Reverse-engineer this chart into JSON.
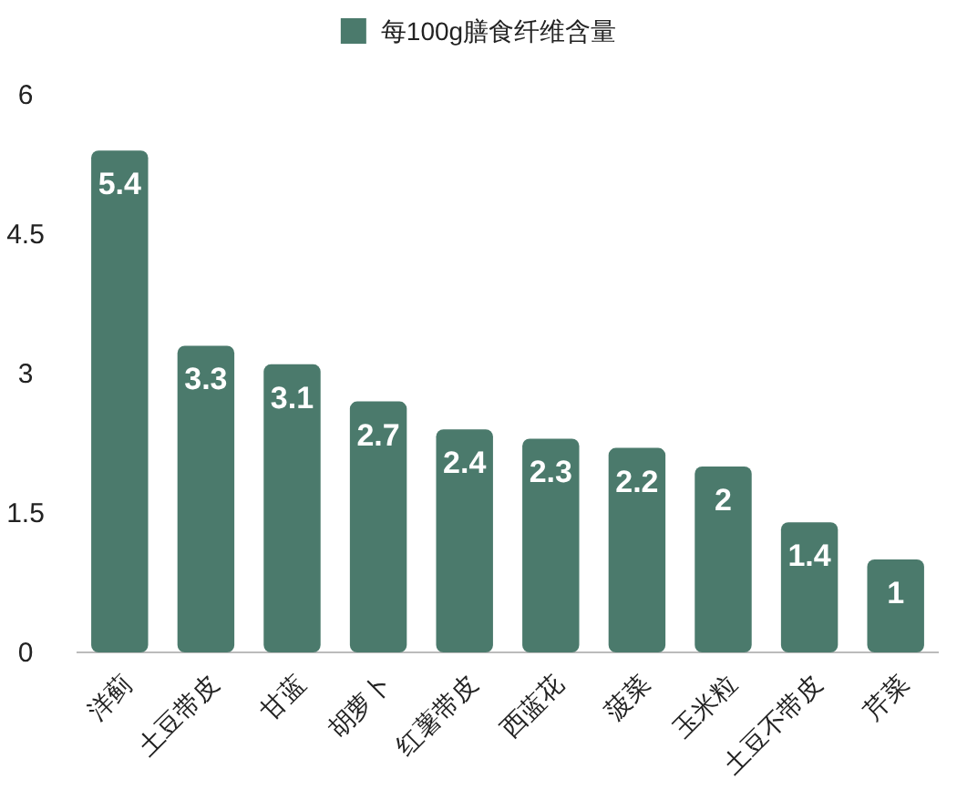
{
  "chart_data": {
    "type": "bar",
    "categories": [
      "洋蓟",
      "土豆带皮",
      "甘蓝",
      "胡萝卜",
      "红薯带皮",
      "西蓝花",
      "菠菜",
      "玉米粒",
      "土豆不带皮",
      "芹菜"
    ],
    "series": [
      {
        "name": "每100g膳食纤维含量",
        "color": "#4b7a6c",
        "values": [
          5.4,
          3.3,
          3.1,
          2.7,
          2.4,
          2.3,
          2.2,
          2,
          1.4,
          1
        ]
      }
    ],
    "ylim": [
      0,
      6
    ],
    "yticks": [
      0,
      1.5,
      3,
      4.5,
      6
    ],
    "grid": false,
    "legend": "top",
    "data_labels": true
  }
}
